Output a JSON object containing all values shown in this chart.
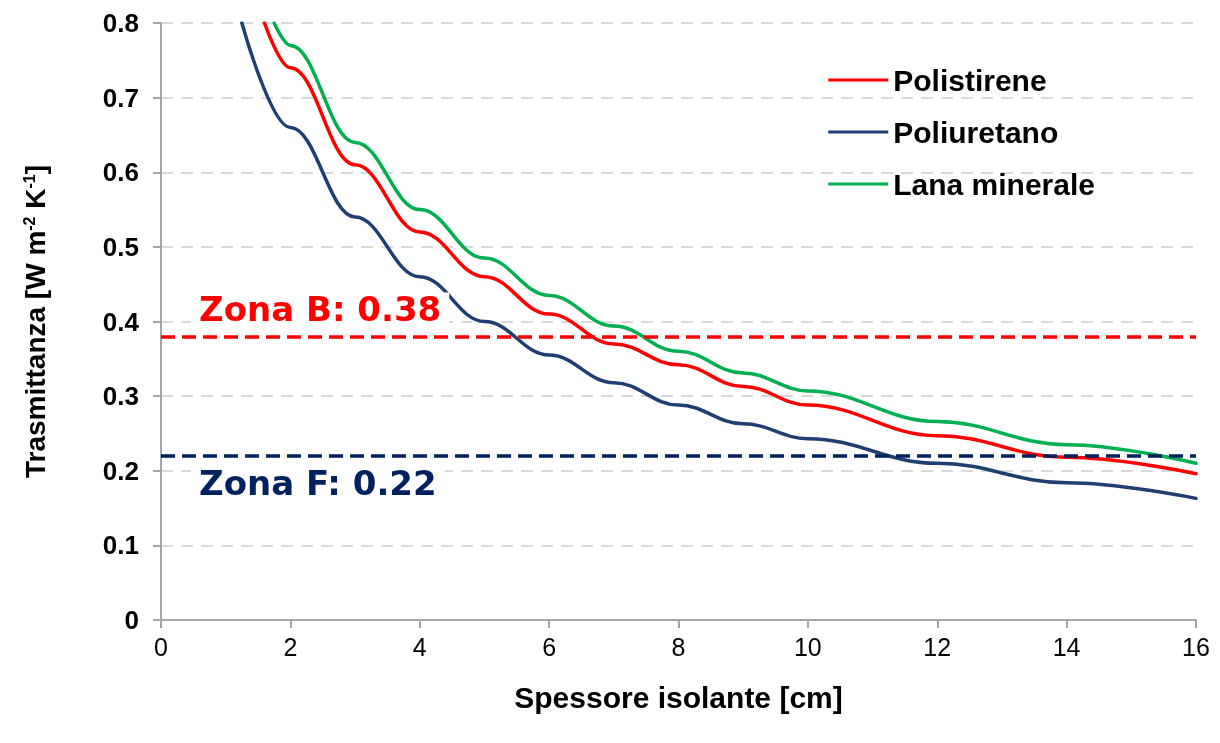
{
  "chart_data": {
    "type": "line",
    "xlabel": "Spessore isolante [cm]",
    "ylabel": "Trasmittanza [W m$^{-2}$ K$^{-1}$]",
    "xlim": [
      0,
      16
    ],
    "xticks": [
      0,
      2,
      4,
      6,
      8,
      10,
      12,
      14,
      16
    ],
    "ylim": [
      0,
      0.8
    ],
    "yticks": [
      0,
      0.1,
      0.2,
      0.3,
      0.4,
      0.5,
      0.6,
      0.7,
      0.8
    ],
    "grid": "y",
    "legend": "top right",
    "marker": "none",
    "line_style": "solid",
    "series": [
      {
        "name": "Polistirene",
        "color": "#ff0000",
        "x": [
          1.6,
          2,
          3,
          4,
          5,
          6,
          7,
          8,
          9,
          10,
          12,
          14,
          16
        ],
        "values": [
          0.8,
          0.74,
          0.61,
          0.52,
          0.46,
          0.41,
          0.37,
          0.342,
          0.313,
          0.288,
          0.247,
          0.218,
          0.196
        ]
      },
      {
        "name": "Poliuretano",
        "color": "#1f3f73",
        "x": [
          1.25,
          2,
          3,
          4,
          5,
          6,
          7,
          8,
          9,
          10,
          12,
          14,
          16
        ],
        "values": [
          0.8,
          0.66,
          0.54,
          0.46,
          0.4,
          0.355,
          0.318,
          0.288,
          0.263,
          0.243,
          0.21,
          0.184,
          0.163
        ]
      },
      {
        "name": "Lana minerale",
        "color": "#00b050",
        "x": [
          1.75,
          2,
          3,
          4,
          5,
          6,
          7,
          8,
          9,
          10,
          12,
          14,
          16
        ],
        "values": [
          0.8,
          0.77,
          0.64,
          0.55,
          0.485,
          0.435,
          0.394,
          0.36,
          0.331,
          0.307,
          0.266,
          0.235,
          0.21
        ]
      }
    ],
    "ref_lines": [
      {
        "axis": "y",
        "value": 0.38,
        "label": "Zona B: 0.38",
        "color": "#ff0000",
        "line_style": "dashed"
      },
      {
        "axis": "y",
        "value": 0.22,
        "label": "Zona F: 0.22",
        "color": "#002060",
        "line_style": "dashed"
      }
    ]
  }
}
